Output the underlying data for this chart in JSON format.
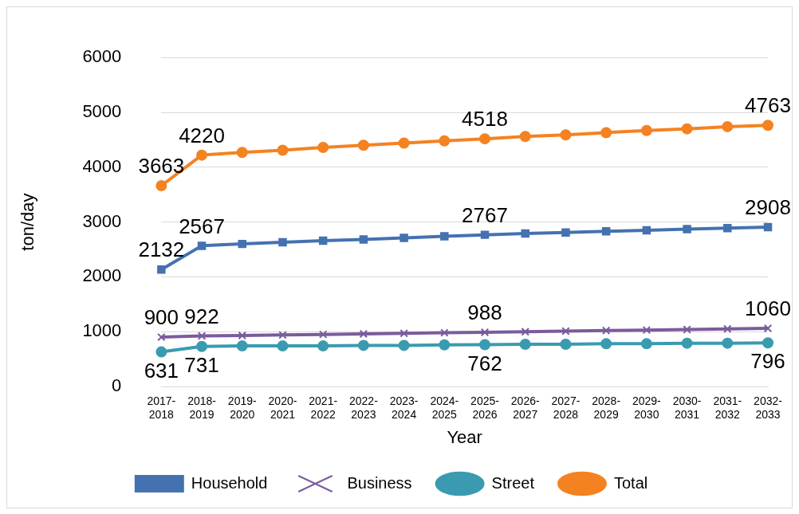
{
  "chart_data": {
    "type": "line",
    "xlabel": "Year",
    "ylabel": "ton/day",
    "categories": [
      "2017-2018",
      "2018-2019",
      "2019-2020",
      "2020-2021",
      "2021-2022",
      "2022-2023",
      "2023-2024",
      "2024-2025",
      "2025-2026",
      "2026-2027",
      "2027-2028",
      "2028-2029",
      "2029-2030",
      "2030-2031",
      "2031-2032",
      "2032-2033"
    ],
    "ylim": [
      0,
      6000
    ],
    "yticks": [
      0,
      1000,
      2000,
      3000,
      4000,
      5000,
      6000
    ],
    "grid": "y",
    "legend": "bottom",
    "series": [
      {
        "name": "Household",
        "color": "#4472b0",
        "marker": "square",
        "values": [
          2132,
          2567,
          2600,
          2630,
          2660,
          2680,
          2710,
          2740,
          2767,
          2790,
          2810,
          2830,
          2850,
          2870,
          2890,
          2908
        ],
        "value_labels": [
          "2132",
          "2567",
          null,
          null,
          null,
          null,
          null,
          null,
          "2767",
          null,
          null,
          null,
          null,
          null,
          null,
          "2908"
        ]
      },
      {
        "name": "Business",
        "color": "#7a5c9c",
        "marker": "cross",
        "values": [
          900,
          922,
          930,
          940,
          950,
          960,
          970,
          980,
          988,
          1000,
          1010,
          1020,
          1030,
          1040,
          1050,
          1060
        ],
        "value_labels": [
          "900",
          "922",
          null,
          null,
          null,
          null,
          null,
          null,
          "988",
          null,
          null,
          null,
          null,
          null,
          null,
          "1060"
        ]
      },
      {
        "name": "Street",
        "color": "#3a9bb0",
        "marker": "circle",
        "values": [
          631,
          731,
          740,
          740,
          740,
          750,
          750,
          760,
          762,
          770,
          770,
          780,
          780,
          790,
          790,
          796
        ],
        "value_labels": [
          "631",
          "731",
          null,
          null,
          null,
          null,
          null,
          null,
          "762",
          null,
          null,
          null,
          null,
          null,
          null,
          "796"
        ]
      },
      {
        "name": "Total",
        "color": "#f58220",
        "marker": "circle",
        "values": [
          3663,
          4220,
          4270,
          4310,
          4360,
          4400,
          4440,
          4480,
          4518,
          4560,
          4590,
          4630,
          4670,
          4700,
          4740,
          4763
        ],
        "value_labels": [
          "3663",
          "4220",
          null,
          null,
          null,
          null,
          null,
          null,
          "4518",
          null,
          null,
          null,
          null,
          null,
          null,
          "4763"
        ]
      }
    ]
  }
}
